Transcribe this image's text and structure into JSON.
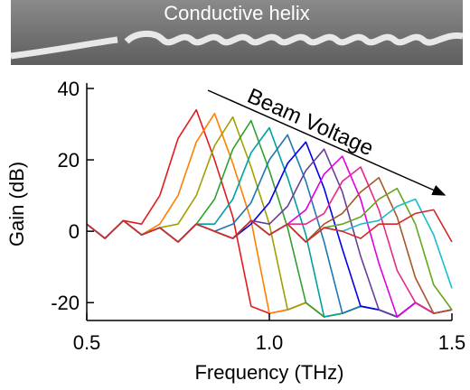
{
  "header": {
    "title": "Conductive helix"
  },
  "chart_data": {
    "type": "line",
    "x_label": "Frequency (THz)",
    "y_label": "Gain (dB)",
    "annotation": "Beam Voltage",
    "x": [
      0.5,
      0.55,
      0.6,
      0.65,
      0.7,
      0.75,
      0.8,
      0.85,
      0.9,
      0.95,
      1.0,
      1.05,
      1.1,
      1.15,
      1.2,
      1.25,
      1.3,
      1.35,
      1.4,
      1.45,
      1.5
    ],
    "xlim": [
      0.5,
      1.5
    ],
    "ylim": [
      -25,
      40
    ],
    "xticks": [
      {
        "value": 0.5,
        "label": "0.5"
      },
      {
        "value": 1.0,
        "label": "1.0"
      },
      {
        "value": 1.5,
        "label": "1.5"
      }
    ],
    "yticks": [
      -20,
      0,
      20,
      40
    ],
    "series": [
      {
        "color": "#e41a1c",
        "values": [
          2,
          -2,
          3,
          2,
          10,
          26,
          34,
          20,
          4,
          -21,
          -23,
          -22,
          -20,
          -24,
          -23,
          -21,
          -22,
          -24,
          -20,
          -23,
          -22
        ]
      },
      {
        "color": "#ff7f00",
        "values": [
          2,
          -2,
          3,
          -1,
          2,
          10,
          25,
          33,
          19,
          3,
          -23,
          -22,
          -20,
          -24,
          -23,
          -21,
          -22,
          -24,
          -20,
          -23,
          -22
        ]
      },
      {
        "color": "#a0a000",
        "values": [
          2,
          -2,
          3,
          -1,
          1,
          2,
          10,
          24,
          32,
          18,
          2,
          -22,
          -20,
          -24,
          -23,
          -21,
          -22,
          -24,
          -20,
          -23,
          -22
        ]
      },
      {
        "color": "#33a02c",
        "values": [
          2,
          -2,
          3,
          -1,
          1,
          -3,
          2,
          9,
          23,
          31,
          17,
          1,
          -20,
          -24,
          -23,
          -21,
          -22,
          -24,
          -20,
          -23,
          -22
        ]
      },
      {
        "color": "#00a0a0",
        "values": [
          2,
          -2,
          3,
          -1,
          1,
          -3,
          2,
          2,
          9,
          22,
          29,
          15,
          -1,
          -24,
          -23,
          -21,
          -22,
          -24,
          -20,
          -23,
          -22
        ]
      },
      {
        "color": "#1f78b4",
        "values": [
          2,
          -2,
          3,
          -1,
          1,
          -3,
          2,
          0,
          2,
          8,
          20,
          27,
          14,
          -3,
          -23,
          -21,
          -22,
          -24,
          -20,
          -23,
          -22
        ]
      },
      {
        "color": "#0000ee",
        "values": [
          2,
          -2,
          3,
          -1,
          1,
          -3,
          2,
          0,
          -2,
          2,
          8,
          19,
          25,
          12,
          -5,
          -21,
          -22,
          -24,
          -20,
          -23,
          -22
        ]
      },
      {
        "color": "#6a3d9a",
        "values": [
          2,
          -2,
          3,
          -1,
          1,
          -3,
          2,
          0,
          -2,
          3,
          2,
          7,
          17,
          23,
          11,
          -7,
          -22,
          -24,
          -20,
          -23,
          -22
        ]
      },
      {
        "color": "#e000e0",
        "values": [
          2,
          -2,
          3,
          -1,
          1,
          -3,
          2,
          0,
          -2,
          3,
          -1,
          2,
          6,
          16,
          21,
          9,
          -9,
          -24,
          -20,
          -23,
          -22
        ]
      },
      {
        "color": "#e7298a",
        "values": [
          2,
          -2,
          3,
          -1,
          1,
          -3,
          2,
          0,
          -2,
          3,
          -1,
          2,
          2,
          5,
          14,
          18,
          6,
          -11,
          -20,
          -23,
          -22
        ]
      },
      {
        "color": "#a65628",
        "values": [
          2,
          -2,
          3,
          -1,
          1,
          -3,
          2,
          0,
          -2,
          3,
          -1,
          2,
          -3,
          2,
          5,
          11,
          15,
          4,
          -13,
          -23,
          -22
        ]
      },
      {
        "color": "#66a61e",
        "values": [
          2,
          -2,
          3,
          -1,
          1,
          -3,
          2,
          0,
          -2,
          3,
          -1,
          2,
          -3,
          1,
          2,
          4,
          9,
          12,
          2,
          -15,
          -22
        ]
      },
      {
        "color": "#17becf",
        "values": [
          2,
          -2,
          3,
          -1,
          1,
          -3,
          2,
          0,
          -2,
          3,
          -1,
          2,
          -3,
          1,
          0,
          2,
          3,
          7,
          9,
          -1,
          -16
        ]
      },
      {
        "color": "#d62728",
        "values": [
          2,
          -2,
          3,
          -1,
          1,
          -3,
          2,
          0,
          -2,
          3,
          -1,
          2,
          -3,
          1,
          0,
          -2,
          2,
          2,
          5,
          6,
          -3
        ]
      }
    ]
  }
}
